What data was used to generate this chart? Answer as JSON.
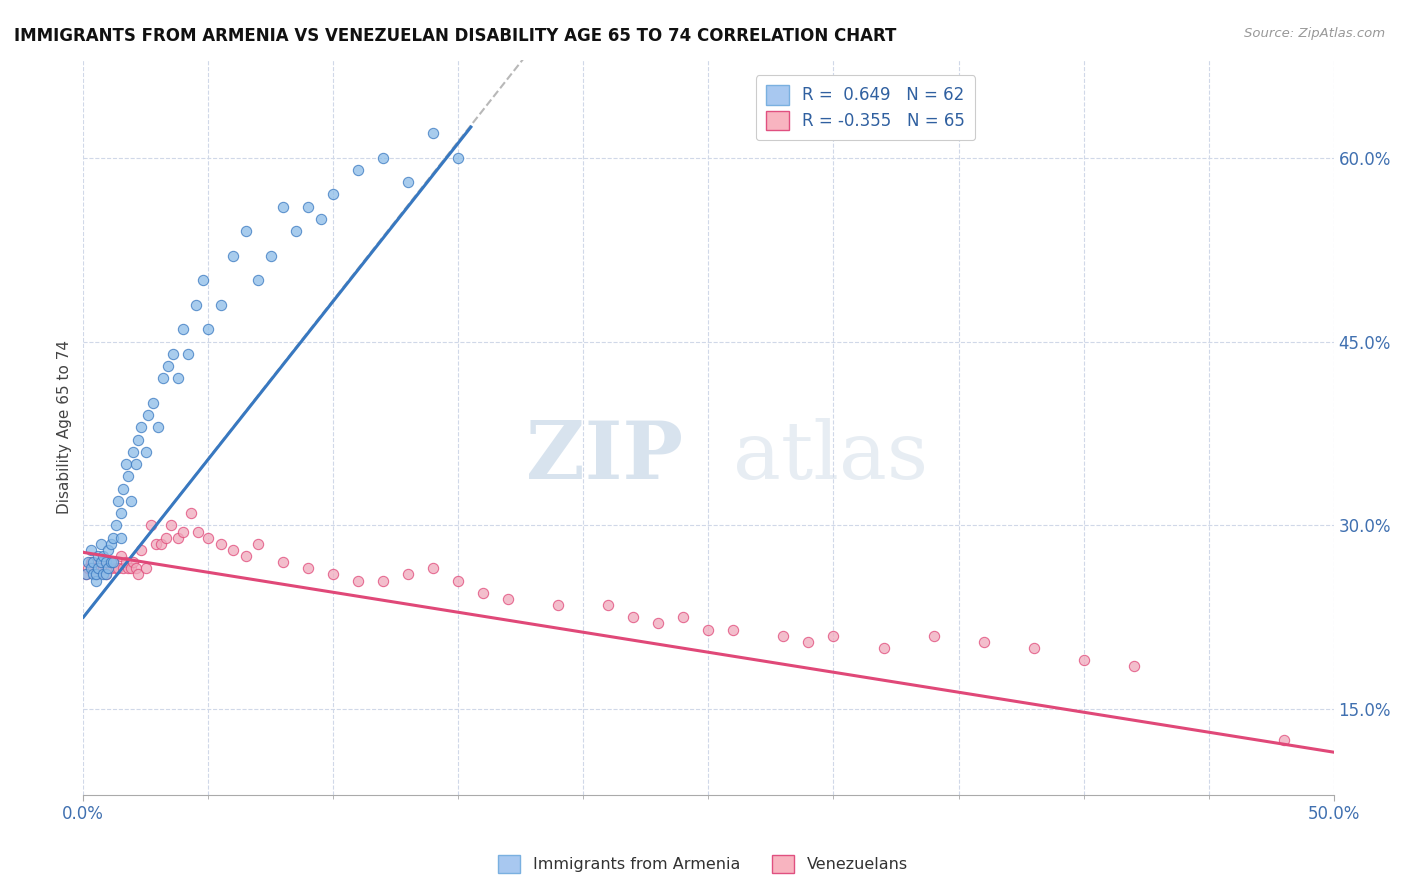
{
  "title": "IMMIGRANTS FROM ARMENIA VS VENEZUELAN DISABILITY AGE 65 TO 74 CORRELATION CHART",
  "source_text": "Source: ZipAtlas.com",
  "ylabel_right_ticks": [
    "15.0%",
    "30.0%",
    "45.0%",
    "60.0%"
  ],
  "ylabel_right_values": [
    0.15,
    0.3,
    0.45,
    0.6
  ],
  "ylabel_label": "Disability Age 65 to 74",
  "xlim": [
    0.0,
    0.5
  ],
  "ylim": [
    0.08,
    0.68
  ],
  "legend_r1": "R =  0.649   N = 62",
  "legend_r2": "R = -0.355   N = 65",
  "legend_color1": "#a8c8f0",
  "legend_color2": "#f8b4c0",
  "watermark_zip": "ZIP",
  "watermark_atlas": "atlas",
  "blue_scatter_x": [
    0.001,
    0.002,
    0.003,
    0.003,
    0.004,
    0.004,
    0.005,
    0.005,
    0.006,
    0.006,
    0.007,
    0.007,
    0.008,
    0.008,
    0.009,
    0.009,
    0.01,
    0.01,
    0.011,
    0.011,
    0.012,
    0.012,
    0.013,
    0.014,
    0.015,
    0.015,
    0.016,
    0.017,
    0.018,
    0.019,
    0.02,
    0.021,
    0.022,
    0.023,
    0.025,
    0.026,
    0.028,
    0.03,
    0.032,
    0.034,
    0.036,
    0.038,
    0.04,
    0.042,
    0.045,
    0.048,
    0.05,
    0.055,
    0.06,
    0.065,
    0.07,
    0.075,
    0.08,
    0.085,
    0.09,
    0.095,
    0.1,
    0.11,
    0.12,
    0.13,
    0.14,
    0.15
  ],
  "blue_scatter_y": [
    0.26,
    0.27,
    0.265,
    0.28,
    0.26,
    0.27,
    0.255,
    0.26,
    0.265,
    0.275,
    0.27,
    0.285,
    0.26,
    0.275,
    0.26,
    0.27,
    0.265,
    0.28,
    0.27,
    0.285,
    0.27,
    0.29,
    0.3,
    0.32,
    0.29,
    0.31,
    0.33,
    0.35,
    0.34,
    0.32,
    0.36,
    0.35,
    0.37,
    0.38,
    0.36,
    0.39,
    0.4,
    0.38,
    0.42,
    0.43,
    0.44,
    0.42,
    0.46,
    0.44,
    0.48,
    0.5,
    0.46,
    0.48,
    0.52,
    0.54,
    0.5,
    0.52,
    0.56,
    0.54,
    0.56,
    0.55,
    0.57,
    0.59,
    0.6,
    0.58,
    0.62,
    0.6
  ],
  "pink_scatter_x": [
    0.001,
    0.002,
    0.003,
    0.004,
    0.005,
    0.006,
    0.007,
    0.008,
    0.009,
    0.01,
    0.011,
    0.012,
    0.013,
    0.014,
    0.015,
    0.016,
    0.017,
    0.018,
    0.019,
    0.02,
    0.021,
    0.022,
    0.023,
    0.025,
    0.027,
    0.029,
    0.031,
    0.033,
    0.035,
    0.038,
    0.04,
    0.043,
    0.046,
    0.05,
    0.055,
    0.06,
    0.065,
    0.07,
    0.08,
    0.09,
    0.1,
    0.11,
    0.12,
    0.13,
    0.14,
    0.15,
    0.16,
    0.17,
    0.19,
    0.21,
    0.22,
    0.23,
    0.24,
    0.25,
    0.26,
    0.28,
    0.29,
    0.3,
    0.32,
    0.34,
    0.36,
    0.38,
    0.4,
    0.42,
    0.48
  ],
  "pink_scatter_y": [
    0.26,
    0.265,
    0.27,
    0.265,
    0.26,
    0.265,
    0.27,
    0.265,
    0.26,
    0.27,
    0.265,
    0.27,
    0.265,
    0.265,
    0.275,
    0.265,
    0.27,
    0.265,
    0.265,
    0.27,
    0.265,
    0.26,
    0.28,
    0.265,
    0.3,
    0.285,
    0.285,
    0.29,
    0.3,
    0.29,
    0.295,
    0.31,
    0.295,
    0.29,
    0.285,
    0.28,
    0.275,
    0.285,
    0.27,
    0.265,
    0.26,
    0.255,
    0.255,
    0.26,
    0.265,
    0.255,
    0.245,
    0.24,
    0.235,
    0.235,
    0.225,
    0.22,
    0.225,
    0.215,
    0.215,
    0.21,
    0.205,
    0.21,
    0.2,
    0.21,
    0.205,
    0.2,
    0.19,
    0.185,
    0.125
  ],
  "blue_line_x": [
    0.0,
    0.155
  ],
  "blue_line_y": [
    0.225,
    0.625
  ],
  "dashed_line_x": [
    0.0,
    0.28
  ],
  "dashed_line_y": [
    0.225,
    0.95
  ],
  "pink_line_x": [
    0.0,
    0.5
  ],
  "pink_line_y": [
    0.278,
    0.115
  ],
  "background_color": "#ffffff",
  "grid_color": "#d0d8e8",
  "scatter_blue_color": "#8bbce8",
  "scatter_pink_color": "#f0a8bc",
  "line_blue_color": "#3878c0",
  "line_pink_color": "#e04878",
  "dashed_line_color": "#b8b8b8"
}
